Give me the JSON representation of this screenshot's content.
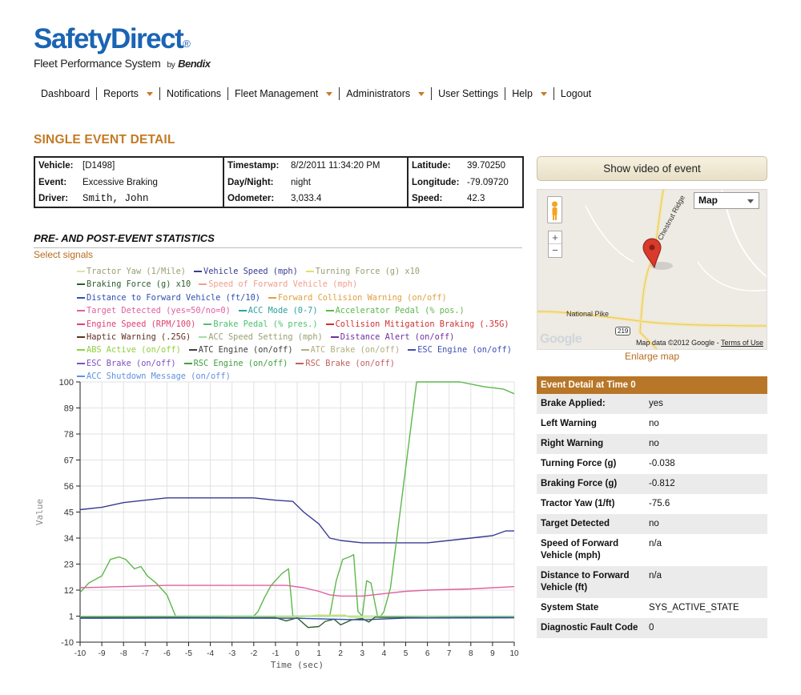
{
  "logo": {
    "brand": "SafetyDirect",
    "reg": "®",
    "subtitle": "Fleet Performance System",
    "by": "by",
    "maker": "Bendix"
  },
  "nav": [
    {
      "label": "Dashboard",
      "dropdown": false
    },
    {
      "label": "Reports",
      "dropdown": true
    },
    {
      "label": "Notifications",
      "dropdown": false
    },
    {
      "label": "Fleet Management",
      "dropdown": true
    },
    {
      "label": "Administrators",
      "dropdown": true
    },
    {
      "label": "User Settings",
      "dropdown": false
    },
    {
      "label": "Help",
      "dropdown": true
    },
    {
      "label": "Logout",
      "dropdown": false
    }
  ],
  "page_title": "SINGLE EVENT DETAIL",
  "event_info": {
    "vehicle_label": "Vehicle:",
    "vehicle": "[D1498]",
    "event_label": "Event:",
    "event": "Excessive Braking",
    "driver_label": "Driver:",
    "driver": "Smith, John",
    "timestamp_label": "Timestamp:",
    "timestamp": "8/2/2011 11:34:20 PM",
    "daynight_label": "Day/Night:",
    "daynight": "night",
    "odometer_label": "Odometer:",
    "odometer": "3,033.4",
    "latitude_label": "Latitude:",
    "latitude": "39.70250",
    "longitude_label": "Longitude:",
    "longitude": "-79.09720",
    "speed_label": "Speed:",
    "speed": "42.3"
  },
  "stats_title": "PRE- AND POST-EVENT STATISTICS",
  "select_signals": "Select signals",
  "legend_rows": [
    [
      {
        "name": "Tractor Yaw (1/Mile)",
        "color": "#d6e6a8"
      },
      {
        "name": "Vehicle Speed (mph)",
        "color": "#3a3a92"
      },
      {
        "name": "Turning Force (g) x10",
        "color": "#e0e070"
      }
    ],
    [
      {
        "name": "Braking Force (g) x10",
        "color": "#2d5e2d"
      },
      {
        "name": "Speed of Forward Vehicle (mph)",
        "color": "#f0a090"
      }
    ],
    [
      {
        "name": "Distance to Forward Vehicle (ft/10)",
        "color": "#3050b0"
      },
      {
        "name": "Forward Collision Warning (on/off)",
        "color": "#e0a040"
      }
    ],
    [
      {
        "name": "Target Detected (yes=50/no=0)",
        "color": "#e060a0"
      },
      {
        "name": "ACC Mode (0-7)",
        "color": "#30a0a0"
      },
      {
        "name": "Accelerator Pedal (% pos.)",
        "color": "#5cb84c"
      }
    ],
    [
      {
        "name": "Engine Speed (RPM/100)",
        "color": "#e04070"
      },
      {
        "name": "Brake Pedal (% pres.)",
        "color": "#50c070"
      },
      {
        "name": "Collision Mitigation Braking (.35G)",
        "color": "#d03030"
      }
    ],
    [
      {
        "name": "Haptic Warning (.25G)",
        "color": "#603020"
      },
      {
        "name": "ACC Speed Setting (mph)",
        "color": "#a0e0a0"
      },
      {
        "name": "Distance Alert (on/off)",
        "color": "#7030a0"
      }
    ],
    [
      {
        "name": "ABS Active (on/off)",
        "color": "#90d040"
      },
      {
        "name": "ATC Engine (on/off)",
        "color": "#404040"
      },
      {
        "name": "ATC Brake (on/off)",
        "color": "#b0b080"
      },
      {
        "name": "ESC Engine (on/off)",
        "color": "#4050b0"
      }
    ],
    [
      {
        "name": "ESC Brake (on/off)",
        "color": "#8050c0"
      },
      {
        "name": "RSC Engine (on/off)",
        "color": "#40a040"
      },
      {
        "name": "RSC Brake (on/off)",
        "color": "#c06060"
      }
    ],
    [
      {
        "name": "ACC Shutdown Message (on/off)",
        "color": "#6090e0"
      }
    ]
  ],
  "chart_data": {
    "type": "line",
    "xlabel": "Time (sec)",
    "ylabel": "Value",
    "xlim": [
      -10,
      10
    ],
    "ylim": [
      -10,
      100
    ],
    "x_ticks": [
      -10,
      -9,
      -8,
      -7,
      -6,
      -5,
      -4,
      -3,
      -2,
      -1,
      0,
      1,
      2,
      3,
      4,
      5,
      6,
      7,
      8,
      9,
      10
    ],
    "y_ticks": [
      -10,
      1,
      12,
      23,
      34,
      45,
      56,
      67,
      78,
      89,
      100
    ],
    "grid": true,
    "series": [
      {
        "name": "Vehicle Speed (mph)",
        "color": "#3a3a92",
        "x": [
          -10,
          -9,
          -8,
          -7,
          -6,
          -5,
          -4,
          -3,
          -2,
          -1,
          -0.2,
          0.3,
          1,
          1.5,
          2,
          3,
          4,
          5,
          6,
          7,
          8,
          9,
          9.6,
          10
        ],
        "y": [
          46,
          47,
          49,
          50,
          51,
          51,
          51,
          51,
          51,
          50,
          49.5,
          45,
          40,
          34,
          33,
          32,
          32,
          32,
          32,
          33,
          34,
          35,
          37,
          37
        ]
      },
      {
        "name": "Accelerator Pedal (% pos.)",
        "color": "#5cb84c",
        "x": [
          -10,
          -9.6,
          -9,
          -8.6,
          -8.2,
          -7.9,
          -7.5,
          -7.2,
          -6.9,
          -6.5,
          -6,
          -5.6,
          -5.3,
          -2,
          -1.8,
          -1.5,
          -1.2,
          -0.7,
          -0.4,
          -0.2,
          1.5,
          1.8,
          2.1,
          2.4,
          2.6,
          2.8,
          3,
          3.2,
          3.4,
          3.7,
          3.85,
          4,
          4.3,
          5.5,
          7.5,
          8.6,
          9.5,
          10
        ],
        "y": [
          11,
          15,
          18,
          25,
          26,
          25,
          21,
          22,
          18,
          15,
          10,
          1,
          1,
          1,
          3,
          9,
          14,
          19,
          21,
          1,
          1,
          16,
          25,
          26,
          27,
          3,
          1,
          16,
          15,
          1,
          1,
          3,
          13,
          100,
          100,
          98,
          97,
          95
        ]
      },
      {
        "name": "Target Detected (yes=50/no=0)",
        "color": "#e060a0",
        "x": [
          -10,
          -8,
          -6,
          -4,
          -2,
          -0.5,
          0.3,
          1,
          1.5,
          2,
          3,
          4,
          5,
          6,
          8,
          10
        ],
        "y": [
          13,
          13.5,
          14,
          14,
          14,
          14,
          13,
          11.5,
          10,
          9.5,
          9.5,
          10.5,
          11.5,
          12,
          12.5,
          13.5
        ]
      },
      {
        "name": "Turning Force (g) x10",
        "color": "#e0e070",
        "x": [
          -10,
          -5,
          -2,
          -1,
          0,
          1,
          1.6,
          2.2,
          2.4,
          3,
          5,
          10
        ],
        "y": [
          0.5,
          0.3,
          0.5,
          0.6,
          0.5,
          1.5,
          1.4,
          1.5,
          0.5,
          0.3,
          0.2,
          0.5
        ]
      },
      {
        "name": "Braking Force (g) x10",
        "color": "#2d5e2d",
        "x": [
          -10,
          -6,
          -3,
          -1,
          -0.5,
          0,
          0.5,
          1,
          1.3,
          1.7,
          2,
          2.5,
          3,
          3.3,
          3.6,
          4,
          4.5,
          6,
          8,
          10
        ],
        "y": [
          0.6,
          0.6,
          0.4,
          0.4,
          -1,
          0.3,
          -3.8,
          -3.4,
          -1.2,
          -0.3,
          -2.7,
          -0.6,
          0,
          -1.5,
          0.7,
          0.5,
          0.5,
          0.4,
          0.5,
          0.5
        ]
      },
      {
        "name": "Distance to Forward Vehicle (ft/10)",
        "color": "#3050b0",
        "x": [
          -10,
          -5,
          0,
          3,
          5,
          10
        ],
        "y": [
          0.1,
          0.2,
          0.1,
          -0.6,
          0.2,
          0.3
        ]
      },
      {
        "name": "ACC Speed Setting (mph)",
        "color": "#a0e0a0",
        "x": [
          -10,
          10
        ],
        "y": [
          1,
          1
        ]
      }
    ]
  },
  "video_button": "Show video of event",
  "map": {
    "type_label": "Map",
    "zoom_in": "+",
    "zoom_out": "−",
    "road_1": "Chestnut Ridge",
    "road_2": "National Pike",
    "shield": "219",
    "google": "Google",
    "credit": "Map data ©2012 Google -",
    "terms": "Terms of Use"
  },
  "enlarge_map": "Enlarge map",
  "detail": {
    "header": "Event Detail at Time 0",
    "rows": [
      {
        "label": "Brake Applied:",
        "value": "yes"
      },
      {
        "label": "Left Warning",
        "value": "no"
      },
      {
        "label": "Right Warning",
        "value": "no"
      },
      {
        "label": "Turning Force (g)",
        "value": "-0.038"
      },
      {
        "label": "Braking Force (g)",
        "value": "-0.812"
      },
      {
        "label": "Tractor Yaw (1/ft)",
        "value": "-75.6"
      },
      {
        "label": "Target Detected",
        "value": "no"
      },
      {
        "label": "Speed of Forward Vehicle (mph)",
        "value": "n/a"
      },
      {
        "label": "Distance to Forward Vehicle (ft)",
        "value": "n/a"
      },
      {
        "label": "System State",
        "value": "SYS_ACTIVE_STATE"
      },
      {
        "label": "Diagnostic Fault Code",
        "value": "0"
      }
    ]
  }
}
